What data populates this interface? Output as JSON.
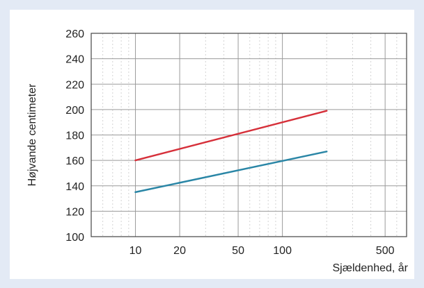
{
  "chart_data": {
    "type": "line",
    "title": "",
    "xlabel": "Sjældenhed, år",
    "ylabel": "Højvande centimeter",
    "x_scale": "log",
    "xlim": [
      5,
      700
    ],
    "ylim": [
      100,
      260
    ],
    "x_ticks": [
      10,
      20,
      50,
      100,
      500
    ],
    "y_ticks": [
      100,
      120,
      140,
      160,
      180,
      200,
      220,
      240,
      260
    ],
    "grid": true,
    "legend": "none",
    "series": [
      {
        "color": "#d6303a",
        "x": [
          10,
          200
        ],
        "y": [
          160,
          199
        ]
      },
      {
        "color": "#2a86a6",
        "x": [
          10,
          200
        ],
        "y": [
          135,
          167
        ]
      }
    ]
  }
}
